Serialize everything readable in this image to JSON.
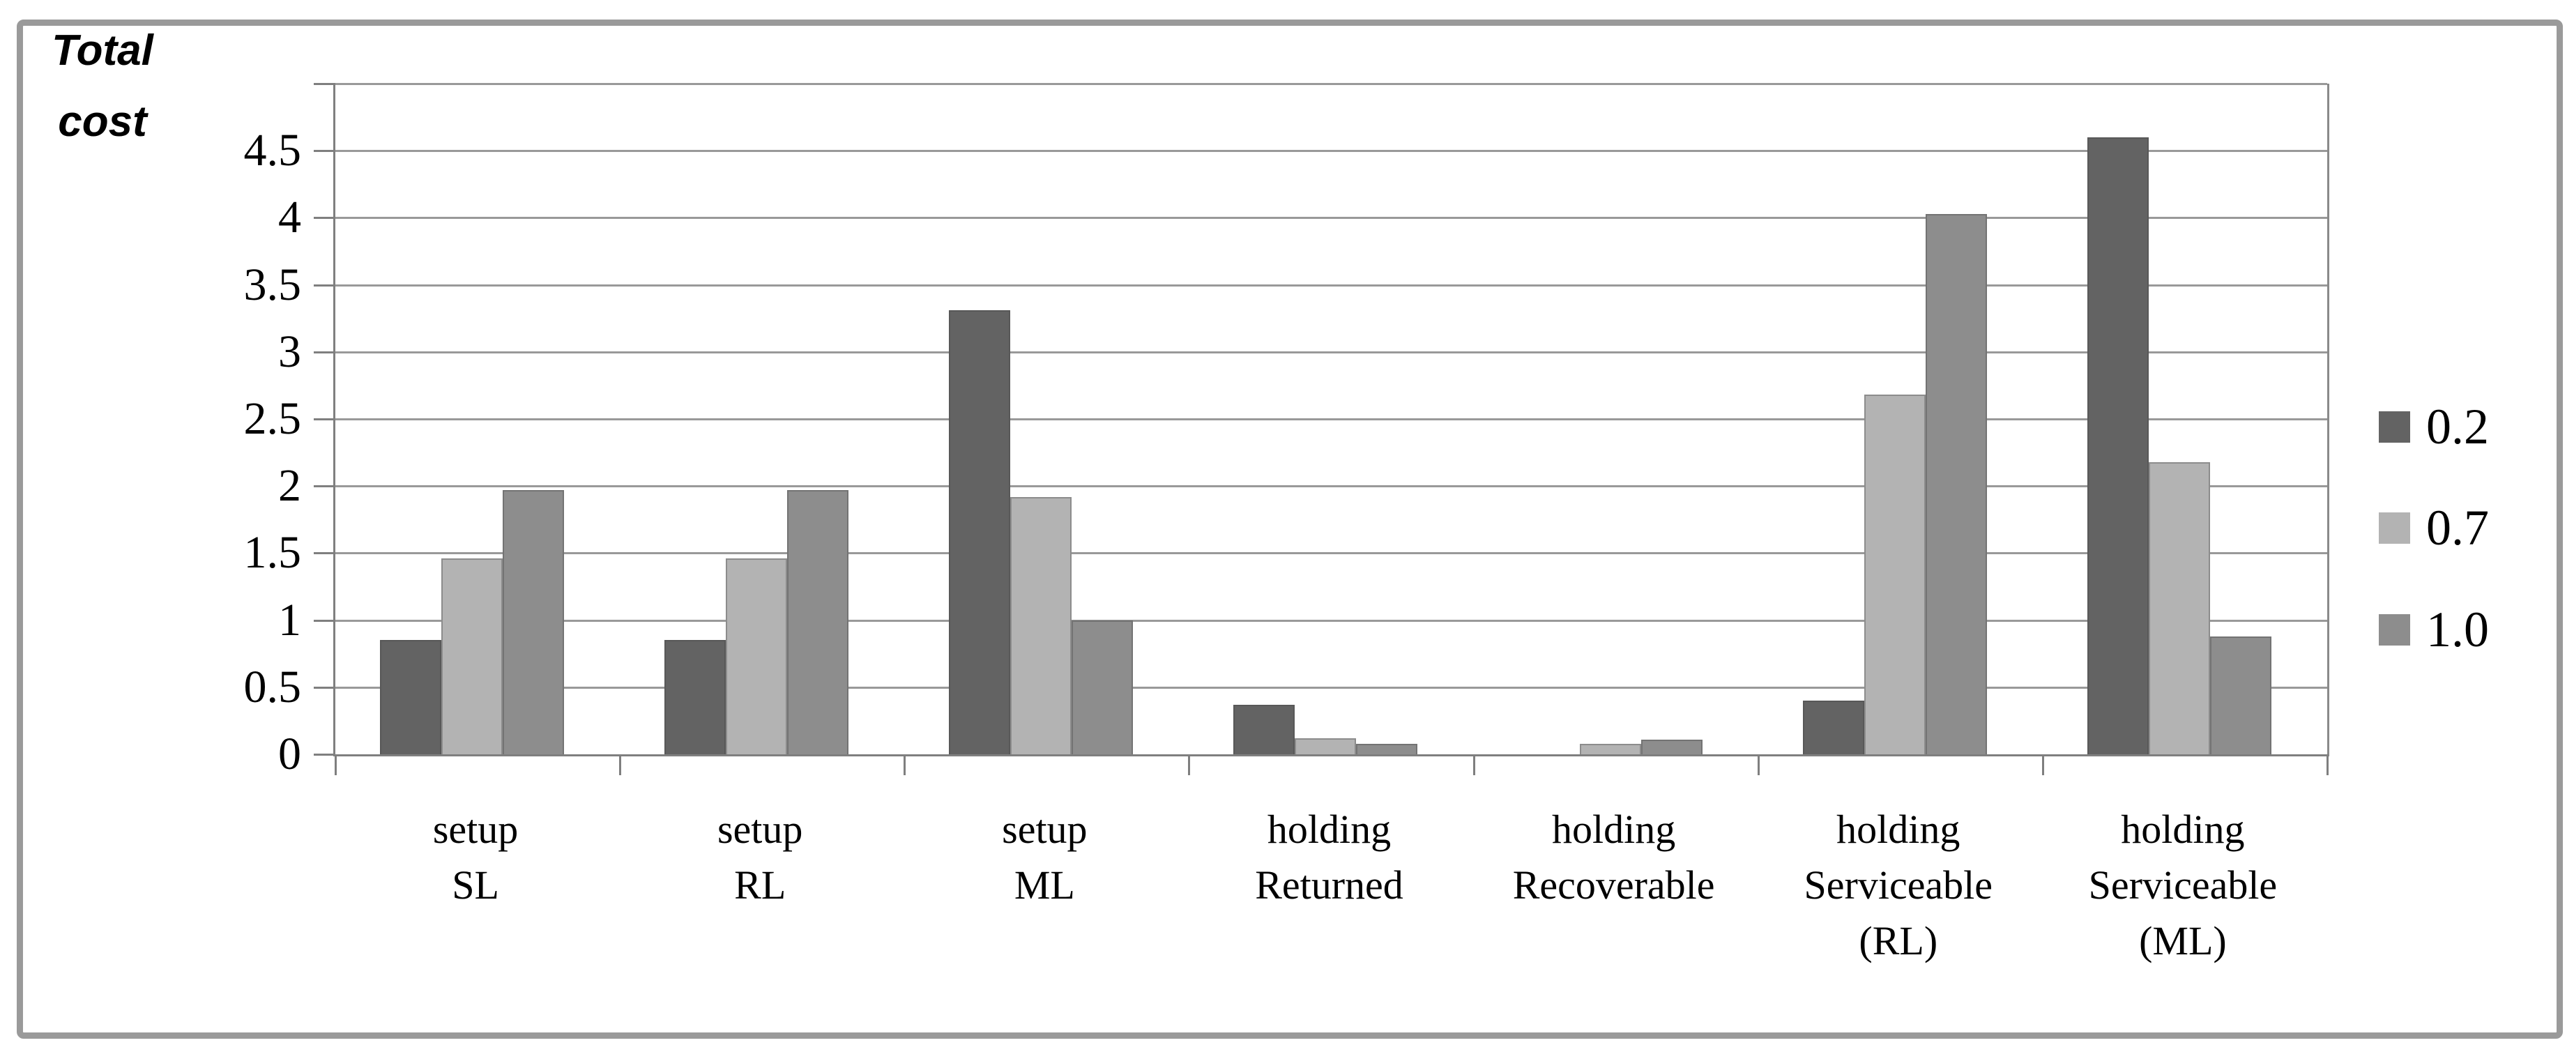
{
  "chart_data": {
    "type": "bar",
    "title": "Total\ncost",
    "xlabel": "",
    "ylabel": "Total cost",
    "categories": [
      "setup\nSL",
      "setup\nRL",
      "setup\nML",
      "holding\nReturned",
      "holding\nRecoverable",
      "holding\nServiceable\n(RL)",
      "holding\nServiceable\n(ML)"
    ],
    "series": [
      {
        "name": "0.2",
        "color": "#636363",
        "values": [
          0.85,
          0.85,
          3.31,
          0.37,
          0,
          0.4,
          4.6
        ]
      },
      {
        "name": "0.7",
        "color": "#b3b3b3",
        "values": [
          1.46,
          1.46,
          1.92,
          0.12,
          0.08,
          2.68,
          2.18
        ]
      },
      {
        "name": "1.0",
        "color": "#8d8d8d",
        "values": [
          1.97,
          1.97,
          1.0,
          0.08,
          0.11,
          4.03,
          0.88
        ]
      }
    ],
    "ylim": [
      0,
      5
    ],
    "ytick_step": 0.5,
    "ytick_labels": [
      "0",
      "0.5",
      "1",
      "1.5",
      "2",
      "2.5",
      "3",
      "3.5",
      "4",
      "4.5"
    ],
    "grid": "horizontal",
    "legend_position": "right",
    "colors": {
      "gridline": "#999999",
      "axis": "#7f7f7f",
      "frame": "#9a9a9a",
      "text": "#000000",
      "background": "#ffffff"
    }
  }
}
